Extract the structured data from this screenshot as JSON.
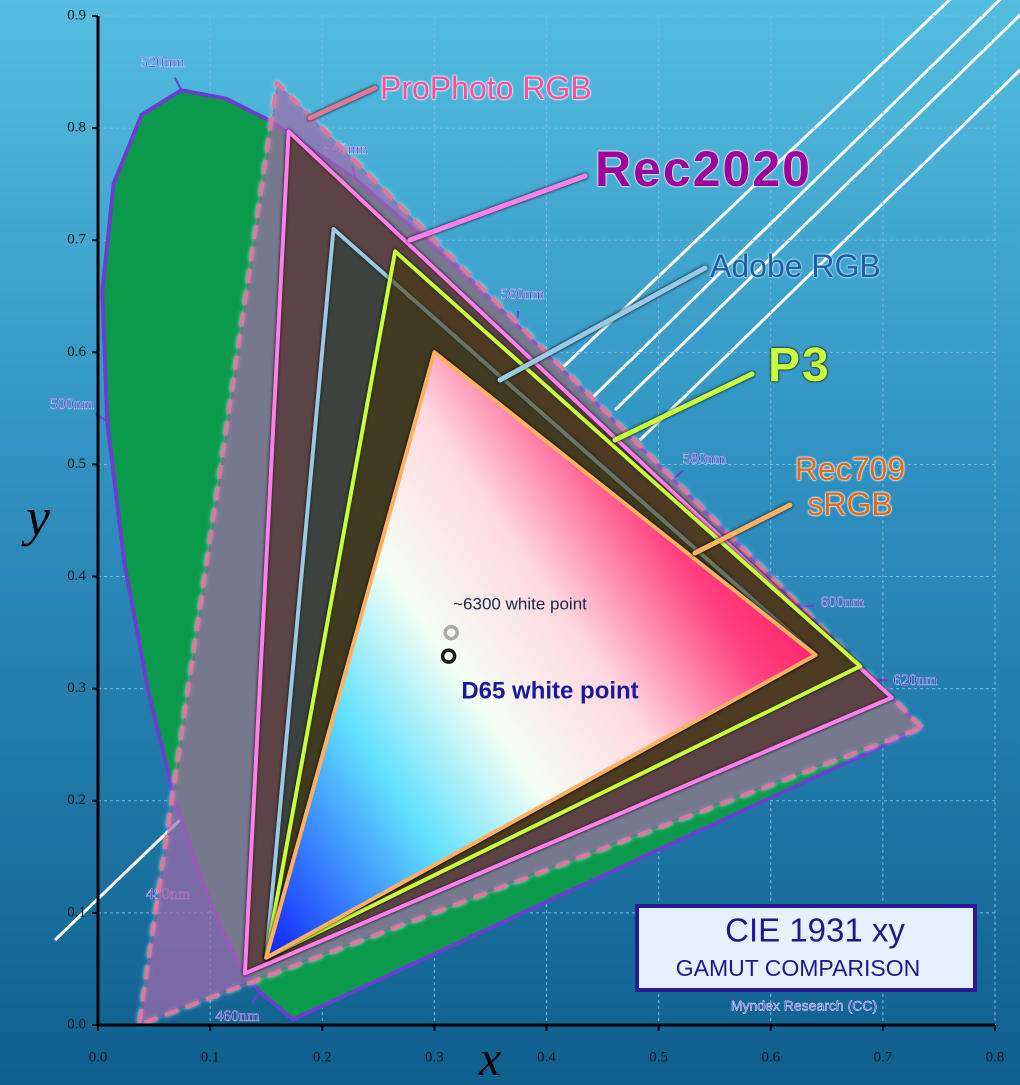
{
  "chart_data": {
    "type": "chromaticity",
    "title": "CIE 1931 xy",
    "subtitle": "GAMUT COMPARISON",
    "credit": "Myndex Research (CC)",
    "x_label": "x",
    "y_label": "y",
    "xlim": [
      0,
      0.8
    ],
    "ylim": [
      0,
      0.9
    ],
    "xticks": [
      {
        "value": 0,
        "label": "0.0"
      },
      0.1,
      0.2,
      0.3,
      0.4,
      0.5,
      0.6,
      0.7,
      0.8
    ],
    "yticks": [
      {
        "value": 0,
        "label": "0.0"
      },
      0.1,
      0.2,
      0.3,
      0.4,
      0.5,
      0.6,
      0.7,
      0.8,
      0.9
    ],
    "grid": true,
    "locus": {
      "color": "#6a3fd0",
      "fill": "#0b9a4c",
      "x": [
        0.1741,
        0.144,
        0.1241,
        0.1096,
        0.0913,
        0.0687,
        0.0454,
        0.0235,
        0.0082,
        0.0039,
        0.0139,
        0.0389,
        0.0743,
        0.1142,
        0.1547,
        0.2296,
        0.3016,
        0.3731,
        0.4441,
        0.5125,
        0.5752,
        0.627,
        0.6915,
        0.719,
        0.7347
      ],
      "y": [
        0.005,
        0.0297,
        0.0578,
        0.0868,
        0.1327,
        0.2007,
        0.295,
        0.4127,
        0.5384,
        0.6548,
        0.7502,
        0.812,
        0.8338,
        0.8262,
        0.8059,
        0.7543,
        0.6923,
        0.6245,
        0.5547,
        0.4866,
        0.4242,
        0.3725,
        0.3083,
        0.2809,
        0.2653
      ],
      "labels": [
        null,
        "460nm",
        null,
        null,
        "480nm",
        null,
        null,
        null,
        "500nm",
        null,
        null,
        null,
        "520nm",
        null,
        null,
        "540nm",
        null,
        "560nm",
        null,
        "580nm",
        null,
        "600nm",
        "620nm",
        null,
        null
      ]
    },
    "series": [
      {
        "name": "ProPhoto RGB",
        "color": "#e0789c",
        "fill": "rgba(150,40,130,0.45)",
        "x": [
          0.7347,
          0.1596,
          0.0366
        ],
        "y": [
          0.2653,
          0.8404,
          0.0001
        ]
      },
      {
        "name": "Rec2020",
        "color": "#ff80ec",
        "fill": "rgba(120,50,30,0.35)",
        "x": [
          0.708,
          0.17,
          0.131
        ],
        "y": [
          0.292,
          0.797,
          0.046
        ]
      },
      {
        "name": "Adobe RGB",
        "color": "#9cc8e4",
        "fill": "rgba(40,110,90,0.25)",
        "x": [
          0.64,
          0.21,
          0.15
        ],
        "y": [
          0.33,
          0.71,
          0.06
        ]
      },
      {
        "name": "P3",
        "color": "#c8ff3c",
        "fill": "rgba(110,90,20,0.35)",
        "x": [
          0.68,
          0.265,
          0.15
        ],
        "y": [
          0.32,
          0.69,
          0.06
        ]
      },
      {
        "name": "Rec709 sRGB",
        "color": "#ffb060",
        "fill": "url(#rgbfill)",
        "x": [
          0.64,
          0.3,
          0.15
        ],
        "y": [
          0.33,
          0.6,
          0.06
        ]
      }
    ],
    "white_points": [
      {
        "name": "~6300 white point",
        "color": "#aaaaaa",
        "x": 0.315,
        "y": 0.35
      },
      {
        "name": "D65 white point",
        "color": "#1a1a1a",
        "x": 0.3127,
        "y": 0.329
      }
    ]
  }
}
